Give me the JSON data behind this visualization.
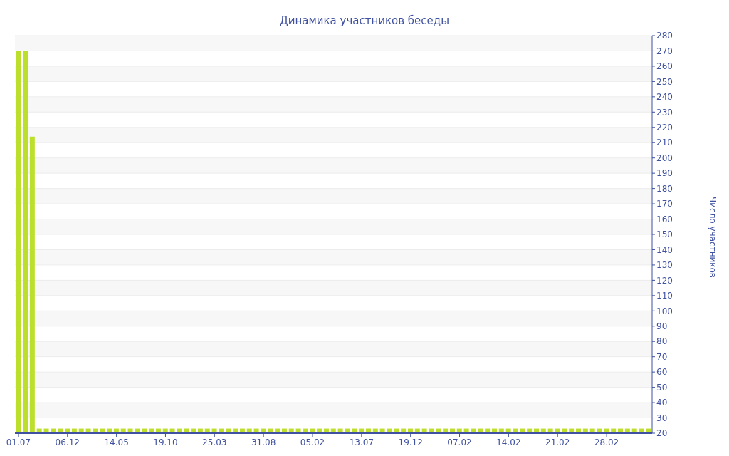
{
  "chart_data": {
    "type": "bar",
    "title": "Динамика участников беседы",
    "ylabel": "Число участников",
    "categories": [
      "01.07",
      null,
      null,
      null,
      null,
      null,
      null,
      "06.12",
      null,
      null,
      null,
      null,
      null,
      null,
      "14.05",
      null,
      null,
      null,
      null,
      null,
      null,
      "19.10",
      null,
      null,
      null,
      null,
      null,
      null,
      "25.03",
      null,
      null,
      null,
      null,
      null,
      null,
      "31.08",
      null,
      null,
      null,
      null,
      null,
      null,
      "05.02",
      null,
      null,
      null,
      null,
      null,
      null,
      "13.07",
      null,
      null,
      null,
      null,
      null,
      null,
      "19.12",
      null,
      null,
      null,
      null,
      null,
      null,
      "07.02",
      null,
      null,
      null,
      null,
      null,
      null,
      "14.02",
      null,
      null,
      null,
      null,
      null,
      null,
      "21.02",
      null,
      null,
      null,
      null,
      null,
      null,
      "28.02",
      null,
      null,
      null,
      null,
      null,
      null
    ],
    "values": [
      270,
      270,
      214,
      23,
      23,
      23,
      23,
      23,
      23,
      23,
      23,
      23,
      23,
      23,
      23,
      23,
      23,
      23,
      23,
      23,
      23,
      23,
      23,
      23,
      23,
      23,
      23,
      23,
      23,
      23,
      23,
      23,
      23,
      23,
      23,
      23,
      23,
      23,
      23,
      23,
      23,
      23,
      23,
      23,
      23,
      23,
      23,
      23,
      23,
      23,
      23,
      23,
      23,
      23,
      23,
      23,
      23,
      23,
      23,
      23,
      23,
      23,
      23,
      23,
      23,
      23,
      23,
      23,
      23,
      23,
      23,
      23,
      23,
      23,
      23,
      23,
      23,
      23,
      23,
      23,
      23,
      23,
      23,
      23,
      23,
      23,
      23,
      23,
      23,
      23,
      23
    ],
    "color": "#bcdf2b",
    "ylim": [
      20,
      280
    ],
    "yticks": [
      20,
      30,
      40,
      50,
      60,
      70,
      80,
      90,
      100,
      110,
      120,
      130,
      140,
      150,
      160,
      170,
      180,
      190,
      200,
      210,
      220,
      230,
      240,
      250,
      260,
      270,
      280
    ],
    "grid": "y"
  }
}
